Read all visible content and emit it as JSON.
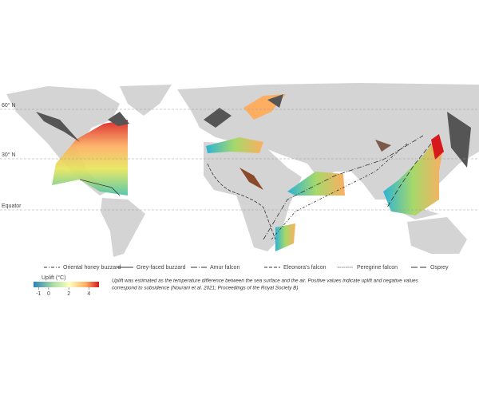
{
  "map": {
    "latitudes": [
      {
        "label": "60° N"
      },
      {
        "label": "30° N"
      },
      {
        "label": "Equator"
      }
    ],
    "routes": [
      {
        "name": "Oriental honey buzzard",
        "style": "dashdot"
      },
      {
        "name": "Grey-faced buzzard",
        "style": "solid"
      },
      {
        "name": "Amur falcon",
        "style": "longdashdot"
      },
      {
        "name": "Eleonora's falcon",
        "style": "dash"
      },
      {
        "name": "Peregrine falcon",
        "style": "dot"
      },
      {
        "name": "Osprey",
        "style": "longdash"
      }
    ],
    "colorbar": {
      "title": "Uplift (°C)",
      "lim": [
        -1.5,
        5
      ],
      "ticks": [
        -1,
        0,
        2,
        4
      ]
    },
    "caption": [
      "Uplift was estimated as the temperature difference between the sea surface and the air. Positive values indicate uplift and negative values",
      "correspond to subsidence (Nourani et al. 2021; Proceedings of the Royal Society B)"
    ]
  }
}
